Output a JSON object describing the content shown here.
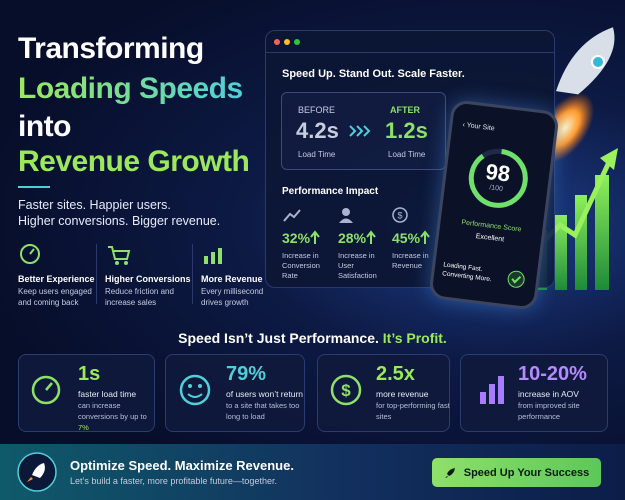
{
  "header": {
    "title": [
      "Transforming",
      "Loading Speeds",
      "into",
      "Revenue Growth"
    ],
    "subtitle": [
      "Faster sites. Happier users.",
      "Higher conversions. Bigger revenue."
    ]
  },
  "features": [
    {
      "title": "Better Experience",
      "text": "Keep users engaged and coming back"
    },
    {
      "title": "Higher Conversions",
      "text": "Reduce friction and increase sales"
    },
    {
      "title": "More Revenue",
      "text": "Every millisecond drives growth"
    }
  ],
  "panel": {
    "heading": "Speed Up. Stand Out. Scale Faster.",
    "before": {
      "label": "BEFORE",
      "value": "4.2s",
      "caption": "Load Time"
    },
    "after": {
      "label": "AFTER",
      "value": "1.2s",
      "caption": "Load Time"
    },
    "impact_title": "Performance Impact",
    "impact": [
      {
        "value": "32%",
        "caption": "Increase in Conversion Rate"
      },
      {
        "value": "28%",
        "caption": "Increase in User Satisfaction"
      },
      {
        "value": "45%",
        "caption": "Increase in Revenue"
      }
    ]
  },
  "phone": {
    "nav": "Your Site",
    "score": "98",
    "max": "/100",
    "label": "Performance Score",
    "rating": "Excellent",
    "footer": "Loading Fast. Converting More."
  },
  "banner": {
    "text": "Speed Isn’t Just Performance.",
    "highlight": "It’s Profit."
  },
  "stats": [
    {
      "value": "1s",
      "title": "faster load time",
      "text": "can increase conversions by up to",
      "highlight": "7%"
    },
    {
      "value": "79%",
      "title": "of users won’t return",
      "text": "to a site that takes too long to load"
    },
    {
      "value": "2.5x",
      "title": "more revenue",
      "text": "for top-performing fast sites"
    },
    {
      "value": "10-20%",
      "title": "increase in AOV",
      "text": "from improved site performance"
    }
  ],
  "footer": {
    "title": "Optimize Speed. Maximize Revenue.",
    "text": "Let’s build a faster, more profitable future—together.",
    "button": "Speed Up Your Success"
  }
}
